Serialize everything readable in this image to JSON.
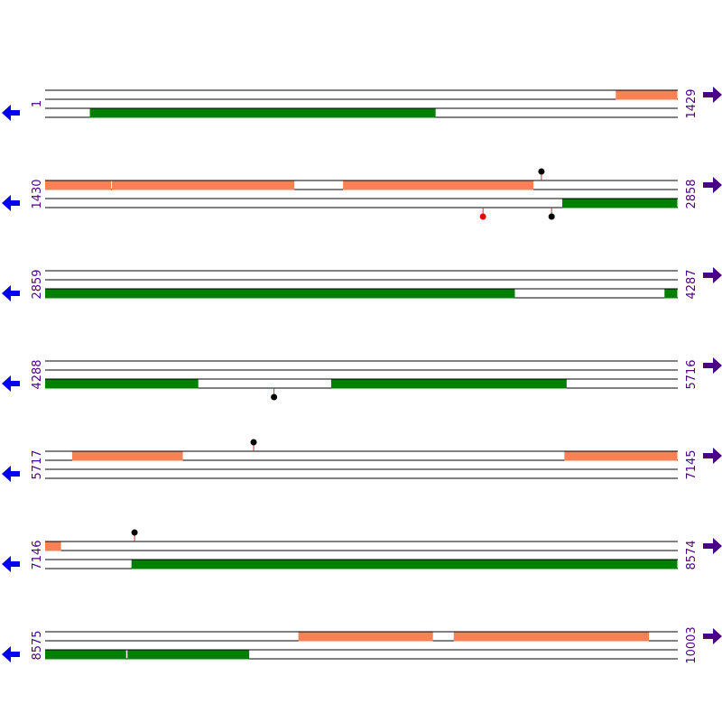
{
  "colors": {
    "forward_feature": "#fa8055",
    "reverse_feature": "#008000",
    "track_line": "#000000",
    "position_text": "#4b0082",
    "reverse_arrow": "#0000ee",
    "forward_arrow": "#4b0082",
    "marker_black": "#000000",
    "marker_red": "#ee0000",
    "stem": "#cc3333"
  },
  "icons": {
    "reverse": "left-arrow-icon",
    "forward": "right-arrow-icon"
  },
  "rows": [
    {
      "start_label": "1",
      "end_label": "1429",
      "start": 1,
      "end": 1429,
      "forward_features": [
        {
          "start": 1290,
          "end": 1429
        }
      ],
      "reverse_features": [
        {
          "start": 102,
          "end": 883
        }
      ],
      "markers": []
    },
    {
      "start_label": "1430",
      "end_label": "2858",
      "start": 1430,
      "end": 2858,
      "forward_features": [
        {
          "start": 1430,
          "end": 1579
        },
        {
          "start": 1581,
          "end": 1993
        },
        {
          "start": 2103,
          "end": 2533
        }
      ],
      "reverse_features": [
        {
          "start": 2598,
          "end": 2858
        }
      ],
      "markers": [
        {
          "pos": 2551,
          "side": "above",
          "color": "black"
        },
        {
          "pos": 2419,
          "side": "below",
          "color": "red"
        },
        {
          "pos": 2574,
          "side": "below",
          "color": "black"
        }
      ]
    },
    {
      "start_label": "2859",
      "end_label": "4287",
      "start": 2859,
      "end": 4287,
      "forward_features": [],
      "reverse_features": [
        {
          "start": 2859,
          "end": 3920
        },
        {
          "start": 4258,
          "end": 4287
        }
      ],
      "markers": []
    },
    {
      "start_label": "4288",
      "end_label": "5716",
      "start": 4288,
      "end": 5716,
      "forward_features": [],
      "reverse_features": [
        {
          "start": 4288,
          "end": 4634
        },
        {
          "start": 4934,
          "end": 5466
        }
      ],
      "markers": [
        {
          "pos": 4805,
          "side": "below",
          "color": "black"
        }
      ]
    },
    {
      "start_label": "5717",
      "end_label": "7145",
      "start": 5717,
      "end": 7145,
      "forward_features": [
        {
          "start": 5778,
          "end": 6028
        },
        {
          "start": 6890,
          "end": 7145
        }
      ],
      "reverse_features": [],
      "markers": [
        {
          "pos": 6188,
          "side": "above",
          "color": "black"
        }
      ]
    },
    {
      "start_label": "7146",
      "end_label": "8574",
      "start": 7146,
      "end": 8574,
      "forward_features": [
        {
          "start": 7146,
          "end": 7182
        }
      ],
      "reverse_features": [
        {
          "start": 7341,
          "end": 8574
        }
      ],
      "markers": [
        {
          "pos": 7348,
          "side": "above",
          "color": "black"
        }
      ]
    },
    {
      "start_label": "8575",
      "end_label": "10003",
      "start": 8575,
      "end": 10003,
      "forward_features": [
        {
          "start": 9147,
          "end": 9451
        },
        {
          "start": 9498,
          "end": 9939
        }
      ],
      "reverse_features": [
        {
          "start": 8575,
          "end": 8758
        },
        {
          "start": 8761,
          "end": 9036
        }
      ],
      "markers": []
    }
  ]
}
